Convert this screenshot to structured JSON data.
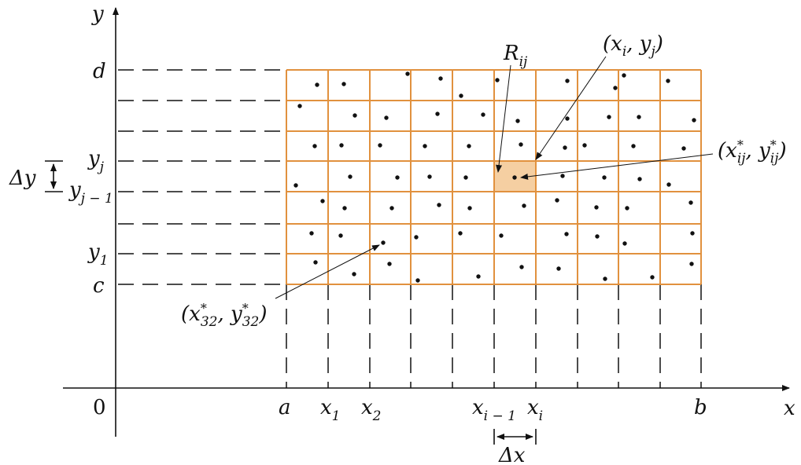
{
  "colors": {
    "grid": "#e1913e",
    "highlight": "#f5cfa2",
    "ink": "#111111"
  },
  "labels": {
    "axis_x": "x",
    "axis_y": "y",
    "origin": "0",
    "a": "a",
    "b": "b",
    "c": "c",
    "d": "d",
    "x1": {
      "base": "x",
      "sub": "1"
    },
    "x2": {
      "base": "x",
      "sub": "2"
    },
    "xim1": {
      "base": "x",
      "sub": "i − 1"
    },
    "xi": {
      "base": "x",
      "sub": "i"
    },
    "y1": {
      "base": "y",
      "sub": "1"
    },
    "yjm1": {
      "base": "y",
      "sub": "j − 1"
    },
    "yj": {
      "base": "y",
      "sub": "j"
    },
    "delta_x": {
      "delta": "Δ",
      "var": "x"
    },
    "delta_y": {
      "delta": "Δ",
      "var": "y"
    },
    "Rij": {
      "base": "R",
      "sub": "ij"
    },
    "point_ij": {
      "open": "(",
      "x": "x",
      "xsub": "i",
      "sep": ", ",
      "y": "y",
      "ysub": "j",
      "close": ")"
    },
    "sample_ij": {
      "open": "(",
      "x": "x",
      "sub": "ij",
      "star": "*",
      "sep": ", ",
      "y": "y",
      "close": ")"
    },
    "sample_32": {
      "open": "(",
      "x": "x",
      "sub": "32",
      "star": "*",
      "sep": ", ",
      "y": "y",
      "close": ")"
    }
  },
  "grid": {
    "columns": 10,
    "rows": 7,
    "highlight_cell": {
      "col": 6,
      "row": 4
    }
  }
}
